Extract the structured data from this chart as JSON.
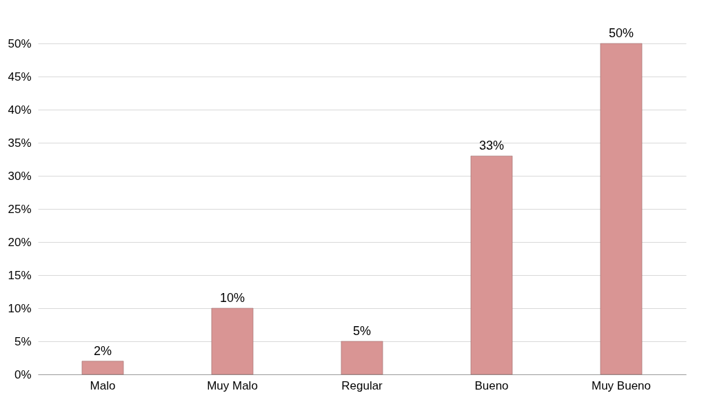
{
  "chart_data": {
    "type": "bar",
    "categories": [
      "Malo",
      "Muy Malo",
      "Regular",
      "Bueno",
      "Muy Bueno"
    ],
    "values": [
      2,
      10,
      5,
      33,
      50
    ],
    "value_labels": [
      "2%",
      "10%",
      "5%",
      "33%",
      "50%"
    ],
    "color": "#d99594",
    "ylim": [
      0,
      50
    ],
    "yticks": [
      {
        "value": 0,
        "label": "0%"
      },
      {
        "value": 5,
        "label": "5%"
      },
      {
        "value": 10,
        "label": "10%"
      },
      {
        "value": 15,
        "label": "15%"
      },
      {
        "value": 20,
        "label": "20%"
      },
      {
        "value": 25,
        "label": "25%"
      },
      {
        "value": 30,
        "label": "30%"
      },
      {
        "value": 35,
        "label": "35%"
      },
      {
        "value": 40,
        "label": "40%"
      },
      {
        "value": 45,
        "label": "45%"
      },
      {
        "value": 50,
        "label": "50%"
      }
    ],
    "grid": "y"
  }
}
